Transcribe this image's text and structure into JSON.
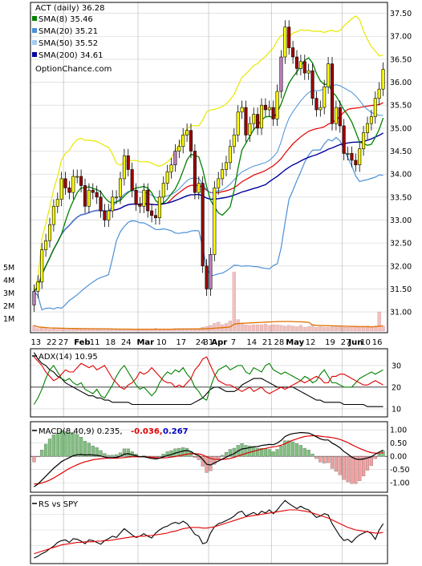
{
  "colors": {
    "background": "#ffffff",
    "panel_border": "#000000",
    "grid": "#d0d0d0",
    "up_candle": "#ffff00",
    "down_candle": "#a00000",
    "purple_candle": "#c080c0",
    "sma8": "#008000",
    "sma20": "#4a90d9",
    "sma50": "#9ecbf0",
    "sma200": "#0000a0",
    "bollinger_upper": "#e8e800",
    "bollinger_lower": "#1e90ff",
    "red_line": "#e00000",
    "volume_bar": "#f0c0c0",
    "volume_avg": "#e07000"
  },
  "chart_data": [
    {
      "type": "candlestick",
      "title": "ACT (daily) 36.28",
      "watermark": "OptionChance.com",
      "yticks": [
        "31.00",
        "31.50",
        "32.00",
        "32.50",
        "33.00",
        "33.50",
        "34.00",
        "34.50",
        "35.00",
        "35.50",
        "36.00",
        "36.50",
        "37.00",
        "37.50"
      ],
      "ylim": [
        30.6,
        37.65
      ],
      "legend": [
        {
          "label": "SMA(8) 35.46",
          "color": "#008000"
        },
        {
          "label": "SMA(20) 35.21",
          "color": "#4a90d9"
        },
        {
          "label": "SMA(50) 35.52",
          "color": "#9ecbf0"
        },
        {
          "label": "SMA(200) 34.61",
          "color": "#0000a0"
        }
      ],
      "x_labels": [
        "13",
        "22",
        "27",
        "Feb",
        "11",
        "18",
        "24",
        "Mar",
        "10",
        "17",
        "24",
        "31",
        "Apr",
        "7",
        "14",
        "21",
        "28",
        "May",
        "12",
        "19",
        "27",
        "Jun",
        "10",
        "16"
      ],
      "x_label_bold": [
        "Feb",
        "Mar",
        "Apr",
        "May",
        "Jun"
      ],
      "close": [
        31.45,
        31.65,
        32.35,
        32.55,
        32.9,
        33.3,
        33.45,
        33.9,
        33.7,
        33.6,
        33.95,
        33.95,
        33.75,
        33.3,
        33.65,
        33.6,
        33.5,
        33.2,
        33.0,
        33.2,
        33.5,
        33.5,
        33.9,
        34.4,
        34.1,
        33.65,
        33.35,
        33.3,
        33.65,
        33.2,
        33.1,
        33.05,
        33.5,
        33.8,
        34.05,
        34.2,
        34.5,
        34.6,
        34.85,
        34.95,
        34.5,
        33.6,
        33.8,
        32.0,
        31.5,
        32.25,
        33.7,
        33.9,
        34.1,
        34.25,
        34.6,
        34.85,
        35.35,
        35.45,
        34.85,
        35.1,
        35.3,
        35.0,
        35.5,
        35.4,
        35.45,
        35.2,
        35.8,
        36.55,
        37.2,
        36.75,
        36.55,
        36.3,
        36.45,
        36.2,
        36.25,
        35.65,
        35.4,
        35.45,
        35.9,
        36.4,
        35.1,
        35.45,
        35.05,
        34.45,
        34.45,
        34.3,
        34.2,
        34.55,
        34.9,
        35.1,
        35.25,
        35.65,
        35.85,
        36.28
      ],
      "volume_label_ticks": [
        "1M",
        "2M",
        "3M",
        "4M",
        "5M"
      ],
      "volume": [
        0.45,
        0.2,
        0.25,
        0.2,
        0.15,
        0.2,
        0.15,
        0.2,
        0.15,
        0.15,
        0.15,
        0.15,
        0.15,
        0.15,
        0.15,
        0.15,
        0.15,
        0.15,
        0.15,
        0.15,
        0.15,
        0.15,
        0.15,
        0.15,
        0.15,
        0.15,
        0.15,
        0.15,
        0.15,
        0.15,
        0.15,
        0.2,
        0.15,
        0.15,
        0.15,
        0.15,
        0.2,
        0.2,
        0.2,
        0.2,
        0.2,
        0.2,
        0.2,
        0.3,
        0.35,
        0.45,
        0.6,
        0.7,
        0.5,
        0.6,
        0.8,
        4.6,
        0.9,
        0.6,
        0.5,
        0.45,
        0.5,
        0.5,
        0.5,
        0.55,
        0.45,
        0.5,
        0.5,
        0.45,
        0.4,
        0.45,
        0.4,
        0.35,
        0.45,
        0.3,
        0.35,
        0.5,
        0.3,
        0.35,
        0.3,
        0.3,
        0.35,
        0.35,
        0.35,
        0.3,
        0.3,
        0.35,
        0.3,
        0.3,
        0.3,
        0.4,
        0.3,
        0.4,
        1.5,
        0.4
      ],
      "ylabel": ""
    },
    {
      "type": "line",
      "title": "ADX(14) 10.95",
      "yticks": [
        "10",
        "20",
        "30"
      ],
      "ylim": [
        7,
        37
      ],
      "series": [
        {
          "color": "#000000",
          "values": [
            36,
            33,
            31,
            30,
            28,
            27,
            25,
            24,
            22,
            21,
            20,
            19,
            18,
            17,
            16,
            16,
            15,
            15,
            14,
            14,
            13,
            13,
            13,
            13,
            13,
            12,
            12,
            12,
            12,
            12,
            12,
            12,
            12,
            12,
            12,
            12,
            12,
            12,
            12,
            12,
            12,
            13,
            14,
            15,
            17,
            19,
            20,
            20,
            19,
            18,
            18,
            18,
            19,
            21,
            22,
            23,
            24,
            24,
            24,
            23,
            22,
            21,
            20,
            20,
            20,
            20,
            20,
            19,
            18,
            17,
            16,
            15,
            14,
            14,
            13,
            13,
            13,
            13,
            13,
            12,
            12,
            12,
            12,
            12,
            12,
            11,
            11,
            11,
            11,
            11
          ]
        },
        {
          "color": "#008000",
          "values": [
            12,
            15,
            19,
            24,
            28,
            30,
            27,
            24,
            23,
            24,
            22,
            21,
            22,
            19,
            18,
            17,
            19,
            16,
            15,
            18,
            21,
            25,
            28,
            30,
            27,
            24,
            21,
            19,
            20,
            18,
            16,
            18,
            22,
            25,
            27,
            26,
            28,
            27,
            29,
            26,
            24,
            20,
            18,
            15,
            14,
            20,
            25,
            28,
            29,
            30,
            28,
            29,
            30,
            30,
            27,
            26,
            29,
            28,
            27,
            30,
            31,
            28,
            27,
            26,
            27,
            26,
            25,
            24,
            23,
            25,
            24,
            22,
            23,
            26,
            28,
            25,
            22,
            22,
            21,
            20,
            20,
            20,
            22,
            24,
            25,
            26,
            27,
            26,
            27,
            28
          ]
        },
        {
          "color": "#e00000",
          "values": [
            34,
            32,
            30,
            27,
            25,
            23,
            24,
            26,
            28,
            27,
            27,
            29,
            31,
            30,
            29,
            30,
            28,
            29,
            30,
            27,
            24,
            22,
            20,
            19,
            21,
            22,
            24,
            27,
            26,
            27,
            29,
            27,
            25,
            23,
            22,
            22,
            20,
            21,
            20,
            22,
            24,
            28,
            30,
            33,
            34,
            30,
            26,
            23,
            22,
            21,
            21,
            20,
            19,
            18,
            19,
            20,
            18,
            19,
            20,
            18,
            17,
            18,
            19,
            20,
            19,
            20,
            21,
            22,
            23,
            22,
            23,
            24,
            25,
            24,
            22,
            22,
            25,
            25,
            26,
            26,
            25,
            24,
            23,
            22,
            21,
            21,
            22,
            23,
            22,
            21
          ]
        }
      ]
    },
    {
      "type": "bar+line",
      "title": "MACD(8,40,9) 0.235,",
      "title_values": [
        {
          "text": "-0.036,",
          "color": "#e00000"
        },
        {
          "text": "0.267",
          "color": "#0000c0"
        }
      ],
      "yticks": [
        "-1.00",
        "-0.50",
        "0.00",
        "0.50",
        "1.00"
      ],
      "ylim": [
        -1.3,
        1.25
      ],
      "macd": [
        -1.15,
        -1.05,
        -0.9,
        -0.75,
        -0.6,
        -0.45,
        -0.33,
        -0.2,
        -0.12,
        -0.05,
        0.02,
        0.06,
        0.07,
        0.05,
        0.06,
        0.05,
        0.04,
        0.01,
        -0.03,
        -0.05,
        -0.05,
        -0.04,
        0.0,
        0.08,
        0.1,
        0.06,
        0.02,
        -0.02,
        -0.01,
        -0.05,
        -0.08,
        -0.1,
        -0.07,
        -0.02,
        0.03,
        0.07,
        0.12,
        0.16,
        0.2,
        0.22,
        0.18,
        0.08,
        0.03,
        -0.12,
        -0.3,
        -0.33,
        -0.25,
        -0.18,
        -0.1,
        -0.03,
        0.04,
        0.1,
        0.2,
        0.28,
        0.3,
        0.33,
        0.36,
        0.37,
        0.41,
        0.43,
        0.45,
        0.44,
        0.5,
        0.6,
        0.75,
        0.82,
        0.86,
        0.88,
        0.9,
        0.89,
        0.88,
        0.82,
        0.74,
        0.66,
        0.62,
        0.62,
        0.5,
        0.42,
        0.32,
        0.18,
        0.08,
        -0.03,
        -0.1,
        -0.12,
        -0.1,
        -0.06,
        -0.02,
        0.08,
        0.16,
        0.235
      ],
      "signal": [
        -1.05,
        -1.04,
        -1.01,
        -0.96,
        -0.9,
        -0.82,
        -0.73,
        -0.64,
        -0.55,
        -0.46,
        -0.39,
        -0.32,
        -0.26,
        -0.21,
        -0.17,
        -0.13,
        -0.11,
        -0.09,
        -0.08,
        -0.07,
        -0.07,
        -0.07,
        -0.06,
        -0.05,
        -0.03,
        -0.02,
        -0.02,
        -0.02,
        -0.02,
        -0.03,
        -0.04,
        -0.05,
        -0.06,
        -0.06,
        -0.05,
        -0.03,
        -0.01,
        0.02,
        0.05,
        0.08,
        0.1,
        0.1,
        0.09,
        0.05,
        -0.02,
        -0.08,
        -0.11,
        -0.12,
        -0.12,
        -0.1,
        -0.08,
        -0.04,
        0.01,
        0.06,
        0.11,
        0.15,
        0.19,
        0.23,
        0.27,
        0.3,
        0.33,
        0.36,
        0.38,
        0.42,
        0.48,
        0.55,
        0.61,
        0.66,
        0.71,
        0.75,
        0.77,
        0.78,
        0.78,
        0.76,
        0.74,
        0.73,
        0.71,
        0.68,
        0.64,
        0.58,
        0.52,
        0.44,
        0.37,
        0.3,
        0.24,
        0.18,
        0.14,
        0.12,
        0.12,
        0.14
      ],
      "histogram_colors": {
        "positive": "#80c080",
        "negative": "#f0a0a0"
      }
    },
    {
      "type": "line",
      "title": "RS vs SPY",
      "ylim": [
        0,
        1
      ],
      "series": [
        {
          "color": "#000000",
          "values": [
            0.05,
            0.08,
            0.12,
            0.15,
            0.2,
            0.24,
            0.3,
            0.33,
            0.34,
            0.3,
            0.36,
            0.35,
            0.32,
            0.28,
            0.34,
            0.33,
            0.3,
            0.27,
            0.33,
            0.36,
            0.4,
            0.38,
            0.45,
            0.52,
            0.47,
            0.42,
            0.38,
            0.4,
            0.44,
            0.4,
            0.37,
            0.45,
            0.5,
            0.54,
            0.56,
            0.6,
            0.62,
            0.6,
            0.64,
            0.6,
            0.52,
            0.43,
            0.4,
            0.28,
            0.3,
            0.45,
            0.55,
            0.6,
            0.62,
            0.65,
            0.68,
            0.72,
            0.78,
            0.8,
            0.72,
            0.75,
            0.78,
            0.74,
            0.8,
            0.77,
            0.82,
            0.76,
            0.82,
            0.9,
            0.97,
            0.92,
            0.88,
            0.84,
            0.88,
            0.84,
            0.82,
            0.76,
            0.7,
            0.72,
            0.76,
            0.74,
            0.6,
            0.5,
            0.4,
            0.33,
            0.35,
            0.3,
            0.37,
            0.42,
            0.45,
            0.48,
            0.44,
            0.35,
            0.5,
            0.6
          ]
        },
        {
          "color": "#e00000",
          "values": [
            0.12,
            0.14,
            0.16,
            0.18,
            0.2,
            0.22,
            0.24,
            0.26,
            0.27,
            0.28,
            0.29,
            0.3,
            0.3,
            0.31,
            0.31,
            0.31,
            0.32,
            0.32,
            0.33,
            0.33,
            0.34,
            0.35,
            0.36,
            0.37,
            0.38,
            0.39,
            0.39,
            0.4,
            0.4,
            0.41,
            0.41,
            0.42,
            0.43,
            0.44,
            0.45,
            0.47,
            0.48,
            0.5,
            0.52,
            0.53,
            0.54,
            0.54,
            0.54,
            0.53,
            0.53,
            0.54,
            0.55,
            0.57,
            0.59,
            0.61,
            0.63,
            0.65,
            0.67,
            0.69,
            0.71,
            0.72,
            0.73,
            0.74,
            0.75,
            0.76,
            0.77,
            0.78,
            0.79,
            0.8,
            0.81,
            0.82,
            0.82,
            0.82,
            0.81,
            0.8,
            0.79,
            0.77,
            0.75,
            0.73,
            0.71,
            0.69,
            0.66,
            0.63,
            0.6,
            0.57,
            0.54,
            0.52,
            0.5,
            0.49,
            0.48,
            0.47,
            0.46,
            0.45,
            0.45,
            0.46
          ]
        }
      ]
    }
  ]
}
